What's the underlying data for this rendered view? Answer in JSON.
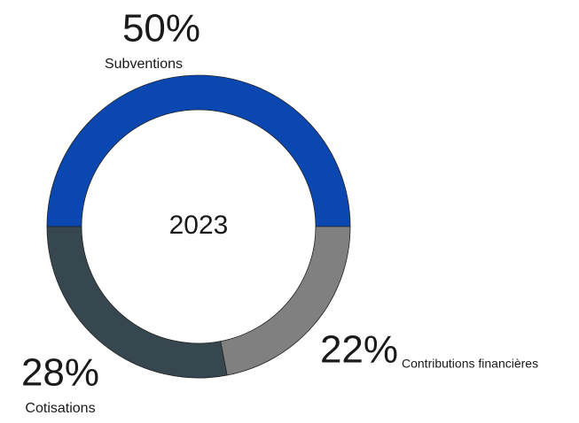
{
  "chart_data": {
    "type": "donut",
    "center_label": "2023",
    "categories": [
      "Subventions",
      "Contributions financières",
      "Cotisations"
    ],
    "values": [
      50,
      22,
      28
    ],
    "value_labels": [
      "50%",
      "22%",
      "28%"
    ],
    "colors": [
      "#0b47b1",
      "#808080",
      "#37474f"
    ]
  }
}
